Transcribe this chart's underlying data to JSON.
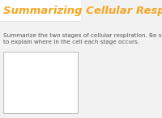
{
  "title": "Summarizing Cellular Respiration",
  "title_color": "#F5A623",
  "title_fontsize": 9.5,
  "title_fontstyle": "italic",
  "title_fontweight": "bold",
  "body_text": "Summarize the two stages of cellular respiration. Be sure\nto explain where in the cell each stage occurs.",
  "body_fontsize": 5.2,
  "body_color": "#555555",
  "background_color": "#F2F2F2",
  "box_facecolor": "#FFFFFF",
  "box_edgecolor": "#BBBBBB",
  "title_bg_color": "#FFFFFF",
  "separator_color": "#DDDDDD"
}
